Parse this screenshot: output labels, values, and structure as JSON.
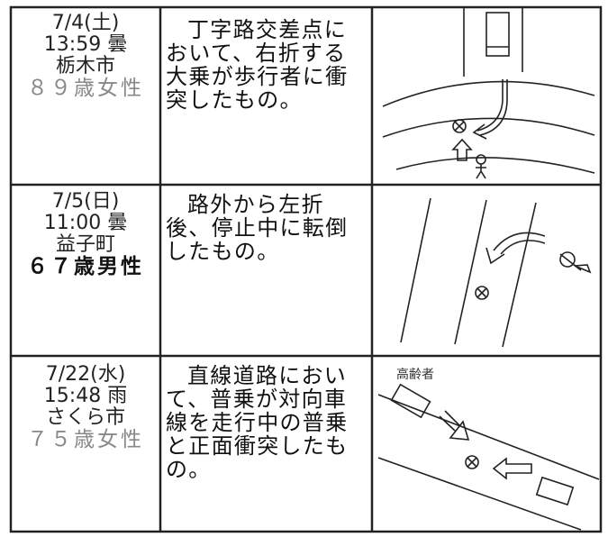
{
  "rows": [
    {
      "date": "7/4(土)",
      "time_weather": "13:59 曇",
      "place": "栃木市",
      "victim": "８９歳女性",
      "description": "丁字路交差点において、右折する大乗が歩行者に衝突したもの。"
    },
    {
      "date": "7/5(日)",
      "time_weather": "11:00 曇",
      "place": "益子町",
      "victim": "６７歳男性",
      "description": "路外から左折後、停止中に転倒したもの。"
    },
    {
      "date": "7/22(水)",
      "time_weather": "15:48 雨",
      "place": "さくら市",
      "victim": "７５歳女性",
      "description": "直線道路において、普乗が対向車線を走行中の普乗と正面衝突したもの。",
      "diagram_label": "高齢者"
    }
  ]
}
